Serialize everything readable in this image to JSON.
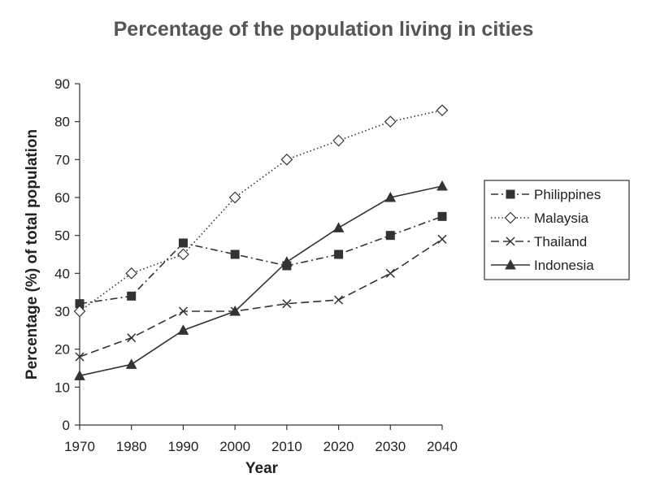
{
  "chart_data": {
    "type": "line",
    "title": "Percentage of the population living in cities",
    "xlabel": "Year",
    "ylabel": "Percentage (%) of total population",
    "categories": [
      "1970",
      "1980",
      "1990",
      "2000",
      "2010",
      "2020",
      "2030",
      "2040"
    ],
    "x": [
      1970,
      1980,
      1990,
      2000,
      2010,
      2020,
      2030,
      2040
    ],
    "xlim": [
      1970,
      2040
    ],
    "ylim": [
      0,
      90
    ],
    "yticks": [
      "0",
      "10",
      "20",
      "30",
      "40",
      "50",
      "60",
      "70",
      "80",
      "90"
    ],
    "grid": false,
    "legend_position": "right",
    "series": [
      {
        "name": "Philippines",
        "values": [
          32,
          34,
          48,
          45,
          42,
          45,
          50,
          55
        ],
        "marker": "square",
        "dash": "dash-dot"
      },
      {
        "name": "Malaysia",
        "values": [
          30,
          40,
          45,
          60,
          70,
          75,
          80,
          83
        ],
        "marker": "diamond",
        "dash": "dotted"
      },
      {
        "name": "Thailand",
        "values": [
          18,
          23,
          30,
          30,
          32,
          33,
          40,
          49
        ],
        "marker": "x",
        "dash": "dashed"
      },
      {
        "name": "Indonesia",
        "values": [
          13,
          16,
          25,
          30,
          43,
          52,
          60,
          63
        ],
        "marker": "triangle",
        "dash": "solid"
      }
    ],
    "colors": {
      "line": "#333333",
      "text": "#222222",
      "title": "#555555"
    }
  }
}
